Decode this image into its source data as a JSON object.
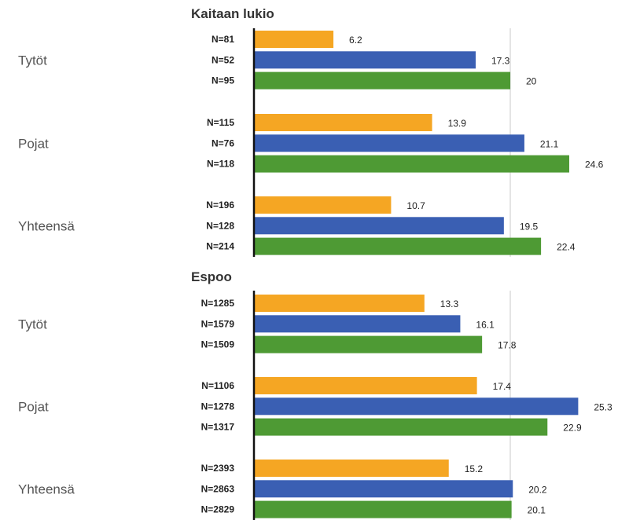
{
  "colors": {
    "yellow": "#f5a623",
    "blue": "#3a5fb3",
    "green": "#4e9a34",
    "axis": "#111111",
    "grid": "#dcdcdc"
  },
  "chart_data": [
    {
      "type": "bar",
      "orientation": "horizontal",
      "title": "Kaitaan lukio",
      "grid": true,
      "xlim": [
        0,
        30
      ],
      "groups": [
        {
          "label": "Tytöt",
          "bars": [
            {
              "n": "N=81",
              "value": 6.2,
              "color": "yellow"
            },
            {
              "n": "N=52",
              "value": 17.3,
              "color": "blue"
            },
            {
              "n": "N=95",
              "value": 20,
              "color": "green"
            }
          ]
        },
        {
          "label": "Pojat",
          "bars": [
            {
              "n": "N=115",
              "value": 13.9,
              "color": "yellow"
            },
            {
              "n": "N=76",
              "value": 21.1,
              "color": "blue"
            },
            {
              "n": "N=118",
              "value": 24.6,
              "color": "green"
            }
          ]
        },
        {
          "label": "Yhteensä",
          "bars": [
            {
              "n": "N=196",
              "value": 10.7,
              "color": "yellow"
            },
            {
              "n": "N=128",
              "value": 19.5,
              "color": "blue"
            },
            {
              "n": "N=214",
              "value": 22.4,
              "color": "green"
            }
          ]
        }
      ]
    },
    {
      "type": "bar",
      "orientation": "horizontal",
      "title": "Espoo",
      "grid": true,
      "xlim": [
        0,
        30
      ],
      "groups": [
        {
          "label": "Tytöt",
          "bars": [
            {
              "n": "N=1285",
              "value": 13.3,
              "color": "yellow"
            },
            {
              "n": "N=1579",
              "value": 16.1,
              "color": "blue"
            },
            {
              "n": "N=1509",
              "value": 17.8,
              "color": "green"
            }
          ]
        },
        {
          "label": "Pojat",
          "bars": [
            {
              "n": "N=1106",
              "value": 17.4,
              "color": "yellow"
            },
            {
              "n": "N=1278",
              "value": 25.3,
              "color": "blue"
            },
            {
              "n": "N=1317",
              "value": 22.9,
              "color": "green"
            }
          ]
        },
        {
          "label": "Yhteensä",
          "bars": [
            {
              "n": "N=2393",
              "value": 15.2,
              "color": "yellow"
            },
            {
              "n": "N=2863",
              "value": 20.2,
              "color": "blue"
            },
            {
              "n": "N=2829",
              "value": 20.1,
              "color": "green"
            }
          ]
        }
      ]
    }
  ]
}
